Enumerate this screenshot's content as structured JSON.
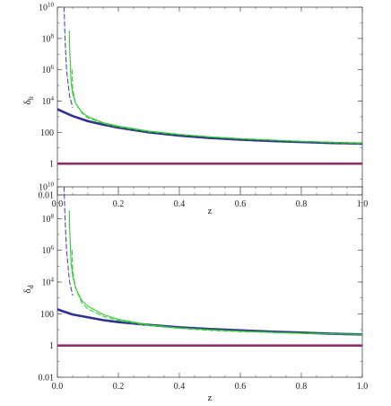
{
  "chart_data": [
    {
      "type": "line",
      "xlabel": "z",
      "ylabel": "δ",
      "ylabel_sub": "b",
      "xlim": [
        0.0,
        1.0
      ],
      "ylim": [
        0.01,
        10000000000
      ],
      "yscale": "log",
      "x_ticks": [
        "0.0",
        "0.2",
        "0.4",
        "0.6",
        "0.8",
        "1.0"
      ],
      "y_ticks": [
        {
          "value": 0.01,
          "label": "0.01"
        },
        {
          "value": 1,
          "label": "1"
        },
        {
          "value": 100,
          "label": "100"
        },
        {
          "value": 10000,
          "base": "10",
          "exp": "4"
        },
        {
          "value": 1000000,
          "base": "10",
          "exp": "6"
        },
        {
          "value": 100000000,
          "base": "10",
          "exp": "8"
        },
        {
          "value": 10000000000,
          "base": "10",
          "exp": "10"
        }
      ],
      "grid": false,
      "series": [
        {
          "style": "thick",
          "color": "#2e3192",
          "x": [
            0.0,
            0.02,
            0.05,
            0.1,
            0.15,
            0.2,
            0.3,
            0.4,
            0.5,
            0.6,
            0.7,
            0.8,
            0.9,
            1.0
          ],
          "y": [
            3000,
            2000,
            1100,
            520,
            310,
            200,
            100,
            62,
            44,
            34,
            28,
            24,
            21,
            19
          ]
        },
        {
          "style": "solid",
          "color": "#33cc33",
          "x": [
            0.039,
            0.04,
            0.045,
            0.05,
            0.06,
            0.08,
            0.1,
            0.15,
            0.2,
            0.3,
            0.4,
            0.5,
            0.6,
            0.8,
            1.0
          ],
          "y": [
            300000000,
            30000000,
            150000,
            30000,
            7000,
            2000,
            1000,
            420,
            250,
            120,
            75,
            52,
            40,
            27,
            20
          ]
        },
        {
          "style": "dashed",
          "color": "#33cc33",
          "x": [
            0.048,
            0.05,
            0.06,
            0.08,
            0.1,
            0.15,
            0.2,
            0.3,
            0.4,
            0.5,
            0.6,
            0.8,
            1.0
          ],
          "y": [
            1000000,
            60000,
            7000,
            1800,
            850,
            370,
            220,
            110,
            70,
            50,
            38,
            26,
            19
          ]
        },
        {
          "style": "dashed",
          "color": "#4a4aa8",
          "x": [
            0.022,
            0.025,
            0.03,
            0.04,
            0.05
          ],
          "y": [
            10000000000,
            100000000,
            1000000,
            20000,
            4000
          ]
        },
        {
          "style": "thick",
          "color": "#8b2f6b",
          "x": [
            0.0,
            1.0
          ],
          "y": [
            1,
            1
          ]
        }
      ]
    },
    {
      "type": "line",
      "xlabel": "z",
      "ylabel": "δ",
      "ylabel_sub": "d",
      "xlim": [
        0.0,
        1.0
      ],
      "ylim": [
        0.01,
        10000000000
      ],
      "yscale": "log",
      "x_ticks": [
        "0.0",
        "0.2",
        "0.4",
        "0.6",
        "0.8",
        "1.0"
      ],
      "y_ticks": [
        {
          "value": 0.01,
          "label": "0.01"
        },
        {
          "value": 1,
          "label": "1"
        },
        {
          "value": 100,
          "label": "100"
        },
        {
          "value": 10000,
          "base": "10",
          "exp": "4"
        },
        {
          "value": 1000000,
          "base": "10",
          "exp": "6"
        },
        {
          "value": 100000000,
          "base": "10",
          "exp": "8"
        },
        {
          "value": 10000000000,
          "base": "10",
          "exp": "10"
        }
      ],
      "grid": false,
      "series": [
        {
          "style": "thick",
          "color": "#2e3192",
          "x": [
            0.0,
            0.02,
            0.05,
            0.1,
            0.15,
            0.2,
            0.3,
            0.4,
            0.5,
            0.6,
            0.7,
            0.8,
            0.9,
            1.0
          ],
          "y": [
            190,
            140,
            90,
            60,
            40,
            30,
            20,
            14,
            11,
            9,
            7.5,
            6.5,
            5.5,
            5
          ]
        },
        {
          "style": "solid",
          "color": "#33cc33",
          "x": [
            0.039,
            0.04,
            0.045,
            0.05,
            0.06,
            0.08,
            0.1,
            0.15,
            0.2,
            0.3,
            0.4,
            0.5,
            0.6,
            0.8,
            1.0
          ],
          "y": [
            300000000,
            30000000,
            150000,
            25000,
            4000,
            700,
            300,
            90,
            45,
            20,
            13,
            10,
            8,
            6,
            5
          ]
        },
        {
          "style": "dashed",
          "color": "#33cc33",
          "x": [
            0.048,
            0.05,
            0.06,
            0.08,
            0.1,
            0.15,
            0.2,
            0.3,
            0.4,
            0.5,
            0.6,
            0.8,
            1.0
          ],
          "y": [
            1000000,
            50000,
            4000,
            500,
            200,
            70,
            38,
            18,
            12,
            9,
            7.5,
            5.8,
            5
          ]
        },
        {
          "style": "dashed",
          "color": "#4a4aa8",
          "x": [
            0.022,
            0.025,
            0.03,
            0.04,
            0.05
          ],
          "y": [
            10000000000,
            100000000,
            1000000,
            10000,
            1500
          ]
        },
        {
          "style": "thick",
          "color": "#8b2f6b",
          "x": [
            0.0,
            1.0
          ],
          "y": [
            1,
            1
          ]
        }
      ]
    }
  ]
}
